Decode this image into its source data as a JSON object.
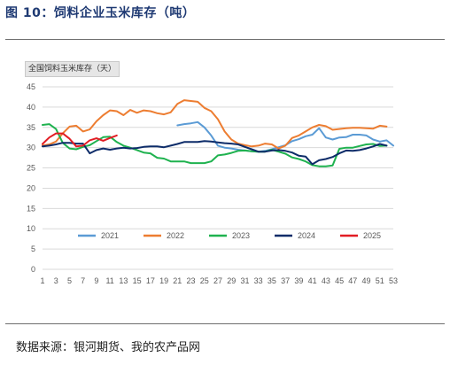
{
  "header": {
    "figure_title": "图 10：饲料企业玉米库存（吨）"
  },
  "footer": {
    "source": "数据来源：银河期货、我的农产品网"
  },
  "chart_data": {
    "type": "line",
    "title": "全国饲料玉米库存（天）",
    "xlabel": "",
    "ylabel": "",
    "xlim": [
      1,
      53
    ],
    "ylim": [
      0,
      45
    ],
    "y_ticks": [
      0,
      5,
      10,
      15,
      20,
      25,
      30,
      35,
      40,
      45
    ],
    "x_ticks": [
      1,
      3,
      5,
      7,
      9,
      11,
      13,
      15,
      17,
      19,
      21,
      23,
      25,
      27,
      29,
      31,
      33,
      35,
      37,
      39,
      41,
      43,
      45,
      47,
      49,
      51,
      53
    ],
    "grid": true,
    "legend_position": "bottom",
    "colors": {
      "2021": "#5b9bd5",
      "2022": "#ed7d31",
      "2023": "#1fb24f",
      "2024": "#0d2c69",
      "2025": "#e21d24"
    },
    "series": [
      {
        "name": "2021",
        "color": "#5b9bd5",
        "x": [
          21,
          22,
          23,
          24,
          25,
          26,
          27,
          28,
          29,
          30,
          31,
          32,
          33,
          34,
          35,
          36,
          37,
          38,
          39,
          40,
          41,
          42,
          43,
          44,
          45,
          46,
          47,
          48,
          49,
          50,
          51,
          52,
          53
        ],
        "values": [
          35.5,
          35.8,
          36,
          36.3,
          35,
          33,
          30.5,
          30,
          29.8,
          29.5,
          29.3,
          29.1,
          29,
          29.2,
          29.6,
          30.1,
          30.6,
          31.6,
          32.1,
          32.8,
          33.2,
          34.8,
          32.5,
          32.0,
          32.5,
          32.6,
          33.2,
          33.2,
          33.0,
          32.0,
          31.5,
          31.8,
          30.5
        ]
      },
      {
        "name": "2022",
        "color": "#ed7d31",
        "x": [
          1,
          2,
          3,
          4,
          5,
          6,
          7,
          8,
          9,
          10,
          11,
          12,
          13,
          14,
          15,
          16,
          17,
          18,
          19,
          20,
          21,
          22,
          23,
          24,
          25,
          26,
          27,
          28,
          29,
          30,
          31,
          32,
          33,
          34,
          35,
          36,
          37,
          38,
          39,
          40,
          41,
          42,
          43,
          44,
          45,
          46,
          47,
          48,
          49,
          50,
          51,
          52
        ],
        "values": [
          30.5,
          30.8,
          31.5,
          33.5,
          35.2,
          35.4,
          34.0,
          34.5,
          36.5,
          38,
          39.2,
          39,
          38,
          39.3,
          38.6,
          39.2,
          39.0,
          38.5,
          38.2,
          38.7,
          40.8,
          41.7,
          41.5,
          41.3,
          39.8,
          39.0,
          37.0,
          34.0,
          32.0,
          31.0,
          30.6,
          30.3,
          30.5,
          31.0,
          30.8,
          29.8,
          30.5,
          32.4,
          33.0,
          34,
          35,
          35.6,
          35.3,
          34.4,
          34.6,
          34.8,
          34.9,
          34.9,
          34.8,
          34.7,
          35.4,
          35.2
        ]
      },
      {
        "name": "2023",
        "color": "#1fb24f",
        "x": [
          1,
          2,
          3,
          4,
          5,
          6,
          7,
          8,
          9,
          10,
          11,
          12,
          13,
          14,
          15,
          16,
          17,
          18,
          19,
          20,
          21,
          22,
          23,
          24,
          25,
          26,
          27,
          28,
          29,
          30,
          31,
          32,
          33,
          34,
          35,
          36,
          37,
          38,
          39,
          40,
          41,
          42,
          43,
          44,
          45,
          46,
          47,
          48,
          49,
          50,
          51,
          52
        ],
        "values": [
          35.6,
          35.8,
          34.6,
          31.2,
          29.8,
          29.6,
          30.2,
          30.6,
          31.6,
          32.6,
          32.7,
          31.4,
          30.5,
          30.0,
          29.4,
          28.8,
          28.6,
          27.5,
          27.3,
          26.6,
          26.6,
          26.6,
          26.2,
          26.2,
          26.2,
          26.6,
          28.1,
          28.3,
          28.7,
          29.2,
          29.3,
          29.1,
          29.0,
          29.0,
          29.5,
          29.0,
          28.5,
          27.6,
          27.2,
          26.6,
          25.7,
          25.4,
          25.4,
          25.6,
          29.7,
          30.0,
          30.0,
          30.4,
          30.8,
          30.9,
          30.4,
          30.5
        ]
      },
      {
        "name": "2024",
        "color": "#0d2c69",
        "x": [
          1,
          2,
          3,
          4,
          5,
          6,
          7,
          8,
          9,
          10,
          11,
          12,
          13,
          14,
          15,
          16,
          17,
          18,
          19,
          20,
          21,
          22,
          23,
          24,
          25,
          26,
          27,
          28,
          29,
          30,
          31,
          32,
          33,
          34,
          35,
          36,
          37,
          38,
          39,
          40,
          41,
          42,
          43,
          44,
          45,
          46,
          47,
          48,
          49,
          50,
          51,
          52
        ],
        "values": [
          30.3,
          30.5,
          30.8,
          31.2,
          31.2,
          31.0,
          31.0,
          28.6,
          29.4,
          29.8,
          29.5,
          29.8,
          30.0,
          29.8,
          29.9,
          30.2,
          30.3,
          30.3,
          30.1,
          30.5,
          30.9,
          31.4,
          31.4,
          31.4,
          31.6,
          31.5,
          31.3,
          31.1,
          31.0,
          30.8,
          30.2,
          29.6,
          29.0,
          29.0,
          29.3,
          29.4,
          29.2,
          28.8,
          28.0,
          27.8,
          25.9,
          26.9,
          27.2,
          27.7,
          28.6,
          29.3,
          29.2,
          29.4,
          29.8,
          30.3,
          30.9,
          30.5
        ]
      },
      {
        "name": "2025",
        "color": "#e21d24",
        "x": [
          1,
          2,
          3,
          4,
          5,
          6,
          7,
          8,
          9,
          10,
          11,
          12
        ],
        "values": [
          30.9,
          32.5,
          33.5,
          33.5,
          32.2,
          30.3,
          30.5,
          31.8,
          32.3,
          31.7,
          32.4,
          33.0
        ]
      }
    ]
  }
}
